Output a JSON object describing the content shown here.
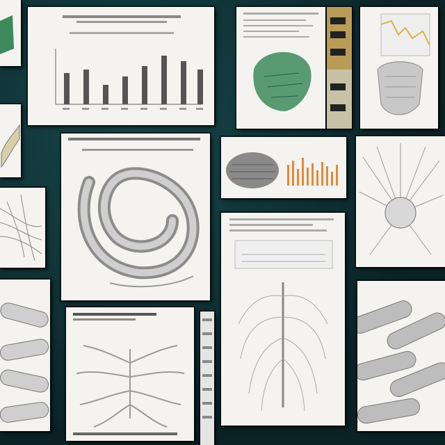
{
  "colors": {
    "background": "#0d2b2e",
    "paper": "#f4f3ef",
    "ink": "#666666",
    "green_accent": "#3d8a5c",
    "orange_accent": "#e08a3a",
    "yellow_accent": "#d9b54a"
  },
  "panels": [
    {
      "name": "top-left-green-fragment",
      "icon": "green-specimen-icon"
    },
    {
      "name": "bar-chart-sheet",
      "icon": "bar-chart-icon"
    },
    {
      "name": "green-anatomy-sheet",
      "icon": "green-organ-icon"
    },
    {
      "name": "label-strip",
      "icon": "label-strip-icon"
    },
    {
      "name": "line-chart-organ-sheet",
      "icon": "line-chart-icon"
    },
    {
      "name": "left-coil-fragment",
      "icon": "coil-icon"
    },
    {
      "name": "left-fiber-fragment",
      "icon": "fiber-icon"
    },
    {
      "name": "left-tube-fragment",
      "icon": "tube-icon"
    },
    {
      "name": "coiled-anatomy-sheet",
      "icon": "coiled-anatomy-icon"
    },
    {
      "name": "orange-bars-sheet",
      "icon": "orange-bar-chart-icon"
    },
    {
      "name": "radiating-organ-sheet",
      "icon": "radiating-organ-icon"
    },
    {
      "name": "branching-tree-sheet",
      "icon": "branching-tree-icon"
    },
    {
      "name": "ribbed-tree-sheet",
      "icon": "ribbed-tree-icon"
    },
    {
      "name": "tube-cluster-sheet",
      "icon": "tube-cluster-icon"
    },
    {
      "name": "vertical-strip",
      "icon": "strip-icon"
    }
  ]
}
